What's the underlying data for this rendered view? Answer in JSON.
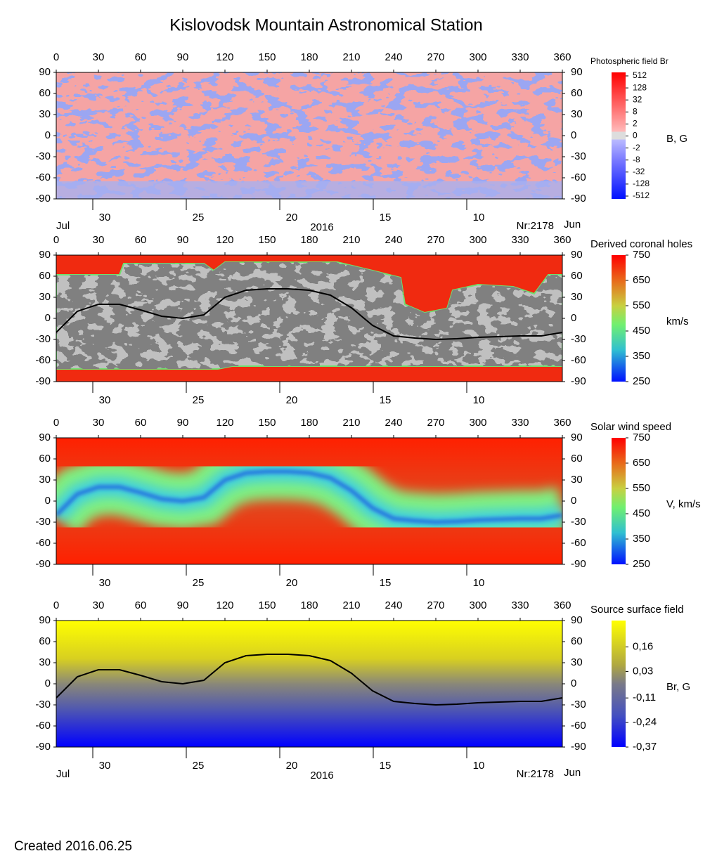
{
  "title": "Kislovodsk Mountain Astronomical Station",
  "created": "Created  2016.06.25",
  "neutral_line": {
    "x": [
      0,
      15,
      30,
      45,
      60,
      75,
      90,
      105,
      120,
      135,
      150,
      165,
      180,
      195,
      210,
      225,
      240,
      255,
      270,
      285,
      300,
      315,
      330,
      345,
      360
    ],
    "y": [
      -20,
      10,
      20,
      20,
      12,
      3,
      0,
      5,
      30,
      40,
      42,
      42,
      40,
      33,
      15,
      -10,
      -25,
      -28,
      -30,
      -29,
      -27,
      -26,
      -25,
      -25,
      -20
    ]
  },
  "panels": [
    {
      "type": "heatmap",
      "palette": "photospheric",
      "colorbar_title": "Photospheric field Br",
      "colorbar_unit": "B, G",
      "colorbar_scale": "symlog",
      "colorbar_ticks": [
        512,
        128,
        32,
        8,
        2,
        0,
        -2,
        -8,
        -32,
        -128,
        -512
      ],
      "xlim": [
        0,
        360
      ],
      "xticks": [
        0,
        30,
        60,
        90,
        120,
        150,
        180,
        210,
        240,
        270,
        300,
        330,
        360
      ],
      "ylim": [
        -90,
        90
      ],
      "yticks": [
        90,
        60,
        30,
        0,
        -30,
        -60,
        -90
      ],
      "date_ticks": [
        {
          "value": 26,
          "label": "30"
        },
        {
          "value": 92.5,
          "label": "25"
        },
        {
          "value": 159,
          "label": "20"
        },
        {
          "value": 225.5,
          "label": "15"
        },
        {
          "value": 292,
          "label": "10"
        }
      ],
      "bottom_labels": {
        "left": "Jul",
        "center": "2016",
        "right": "Nr:2178",
        "end": "Jun"
      },
      "show_neutral_line": false
    },
    {
      "type": "heatmap",
      "palette": "coronal_holes",
      "colorbar_title": "Derived coronal holes",
      "colorbar_unit": "km/s",
      "colorbar_scale": "linear",
      "colorbar_lim": [
        250,
        750
      ],
      "colorbar_ticks": [
        750,
        650,
        550,
        450,
        350,
        250
      ],
      "xlim": [
        0,
        360
      ],
      "xticks": [
        0,
        30,
        60,
        90,
        120,
        150,
        180,
        210,
        240,
        270,
        300,
        330,
        360
      ],
      "ylim": [
        -90,
        90
      ],
      "yticks": [
        90,
        60,
        30,
        0,
        -30,
        -60,
        -90
      ],
      "date_ticks": [
        {
          "value": 26,
          "label": "30"
        },
        {
          "value": 92.5,
          "label": "25"
        },
        {
          "value": 159,
          "label": "20"
        },
        {
          "value": 225.5,
          "label": "15"
        },
        {
          "value": 292,
          "label": "10"
        }
      ],
      "show_neutral_line": true
    },
    {
      "type": "heatmap",
      "palette": "wind",
      "colorbar_title": "Solar wind speed",
      "colorbar_unit": "V, km/s",
      "colorbar_scale": "linear",
      "colorbar_lim": [
        250,
        750
      ],
      "colorbar_ticks": [
        750,
        650,
        550,
        450,
        350,
        250
      ],
      "xlim": [
        0,
        360
      ],
      "xticks": [
        0,
        30,
        60,
        90,
        120,
        150,
        180,
        210,
        240,
        270,
        300,
        330,
        360
      ],
      "ylim": [
        -90,
        90
      ],
      "yticks": [
        90,
        60,
        30,
        0,
        -30,
        -60,
        -90
      ],
      "date_ticks": [
        {
          "value": 26,
          "label": "30"
        },
        {
          "value": 92.5,
          "label": "25"
        },
        {
          "value": 159,
          "label": "20"
        },
        {
          "value": 225.5,
          "label": "15"
        },
        {
          "value": 292,
          "label": "10"
        }
      ],
      "show_neutral_line": false
    },
    {
      "type": "heatmap",
      "palette": "source_surface",
      "colorbar_title": "Source surface field",
      "colorbar_unit": "Br, G",
      "colorbar_scale": "linear",
      "colorbar_lim": [
        -0.37,
        0.3
      ],
      "colorbar_ticks": [
        {
          "value": 0.16,
          "label": "0,16"
        },
        {
          "value": 0.03,
          "label": "0,03"
        },
        {
          "value": -0.11,
          "label": "-0,11"
        },
        {
          "value": -0.24,
          "label": "-0,24"
        },
        {
          "value": -0.37,
          "label": "-0,37"
        }
      ],
      "xlim": [
        0,
        360
      ],
      "xticks": [
        0,
        30,
        60,
        90,
        120,
        150,
        180,
        210,
        240,
        270,
        300,
        330,
        360
      ],
      "ylim": [
        -90,
        90
      ],
      "yticks": [
        90,
        60,
        30,
        0,
        -30,
        -60,
        -90
      ],
      "date_ticks": [
        {
          "value": 26,
          "label": "30"
        },
        {
          "value": 92.5,
          "label": "25"
        },
        {
          "value": 159,
          "label": "20"
        },
        {
          "value": 225.5,
          "label": "15"
        },
        {
          "value": 292,
          "label": "10"
        }
      ],
      "bottom_labels": {
        "left": "Jul",
        "center": "2016",
        "right": "Nr:2178",
        "end": "Jun"
      },
      "show_neutral_line": true
    }
  ]
}
